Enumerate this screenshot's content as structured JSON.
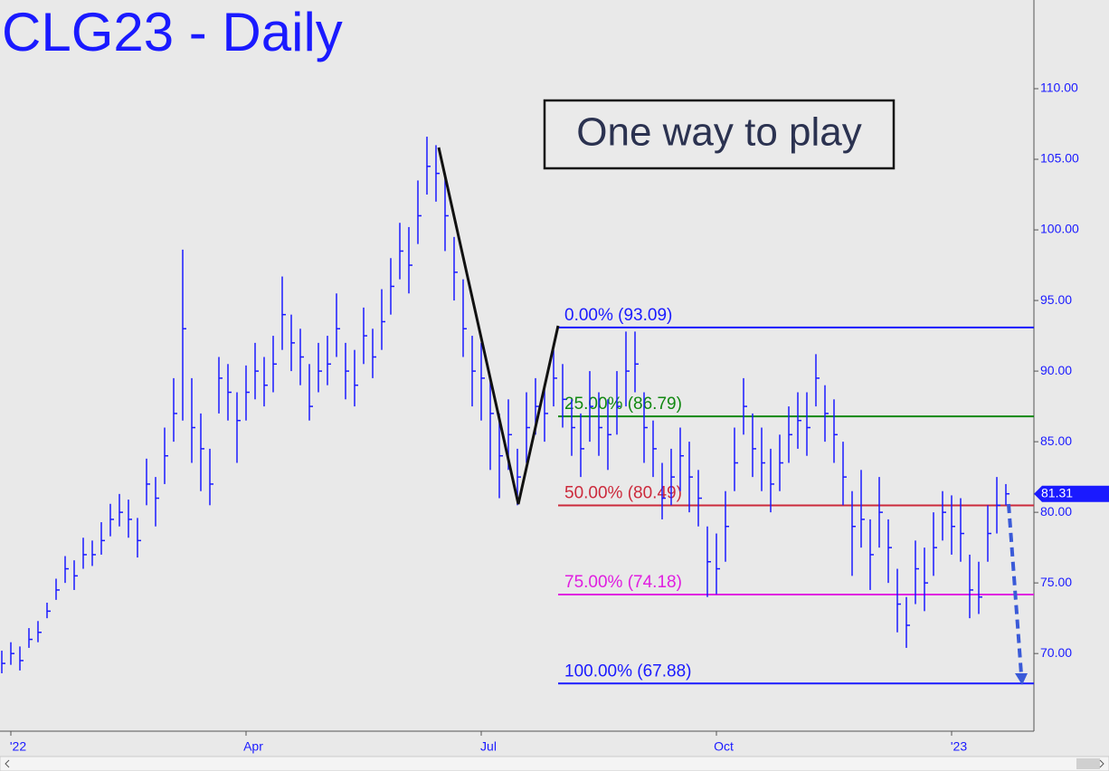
{
  "chart_data": {
    "type": "ohlc",
    "title": "CLG23 - Daily",
    "annotation": "One way  to play",
    "categories": [
      null,
      "'22",
      null,
      null,
      null,
      null,
      null,
      null,
      null,
      null,
      null,
      null,
      null,
      null,
      null,
      null,
      null,
      null,
      null,
      null,
      null,
      null,
      null,
      null,
      null,
      null,
      null,
      "Apr",
      null,
      null,
      null,
      null,
      null,
      null,
      null,
      null,
      null,
      null,
      null,
      null,
      null,
      null,
      null,
      null,
      null,
      null,
      null,
      null,
      null,
      null,
      null,
      null,
      null,
      "Jul",
      null,
      null,
      null,
      null,
      null,
      null,
      null,
      null,
      null,
      null,
      null,
      null,
      null,
      null,
      null,
      null,
      null,
      null,
      null,
      null,
      null,
      null,
      null,
      null,
      null,
      "Oct",
      null,
      null,
      null,
      null,
      null,
      null,
      null,
      null,
      null,
      null,
      null,
      null,
      null,
      null,
      null,
      null,
      null,
      null,
      null,
      null,
      null,
      null,
      null,
      null,
      null,
      "'23",
      null,
      null,
      null,
      null,
      null,
      null
    ],
    "high": [
      70.2,
      70.8,
      70.5,
      71.8,
      72.3,
      73.6,
      75.3,
      76.9,
      76.6,
      78.2,
      78.0,
      79.3,
      80.6,
      81.3,
      80.9,
      79.6,
      83.8,
      82.5,
      86.0,
      89.5,
      98.6,
      89.5,
      87.0,
      84.5,
      91.0,
      90.5,
      88.5,
      90.4,
      92.0,
      91.0,
      92.5,
      96.7,
      94.0,
      93.0,
      90.5,
      92.0,
      92.5,
      95.5,
      92.0,
      91.5,
      94.5,
      93.0,
      95.8,
      98.0,
      100.5,
      100.2,
      103.5,
      106.6,
      106.0,
      104.0,
      99.5,
      96.5,
      92.5,
      92.0,
      89.5,
      87.0,
      88.0,
      84.5,
      88.5,
      89.5,
      89.0,
      91.5,
      90.5,
      88.0,
      87.0,
      90.0,
      88.5,
      88.0,
      90.0,
      92.8,
      92.8,
      88.5,
      86.5,
      83.5,
      84.5,
      86.0,
      85.0,
      83.0,
      79.0,
      78.5,
      81.5,
      86.0,
      89.5,
      87.0,
      86.0,
      84.5,
      85.5,
      87.5,
      88.5,
      88.5,
      91.2,
      89.0,
      88.0,
      85.0,
      81.5,
      83.0,
      79.5,
      82.5,
      79.5,
      76.0,
      74.0,
      78.0,
      77.5,
      80.0,
      81.5,
      81.2,
      81.0,
      77.0,
      76.5,
      80.5,
      82.5,
      82.0
    ],
    "low": [
      68.6,
      69.2,
      68.8,
      70.4,
      70.8,
      72.5,
      73.8,
      75.0,
      74.5,
      76.0,
      76.2,
      77.0,
      78.3,
      79.0,
      78.2,
      76.8,
      80.5,
      79.0,
      82.0,
      85.0,
      86.5,
      83.5,
      81.5,
      80.5,
      87.0,
      86.5,
      83.5,
      86.5,
      88.0,
      87.5,
      88.5,
      91.5,
      90.0,
      89.0,
      86.5,
      88.5,
      89.0,
      91.0,
      88.0,
      87.5,
      90.5,
      89.5,
      91.5,
      94.0,
      96.5,
      95.5,
      99.0,
      102.5,
      102.0,
      98.5,
      95.0,
      91.0,
      87.5,
      86.5,
      83.0,
      81.0,
      83.0,
      80.5,
      83.5,
      85.5,
      85.0,
      87.5,
      86.0,
      84.0,
      82.5,
      85.0,
      84.0,
      83.0,
      85.5,
      87.5,
      88.5,
      83.5,
      82.5,
      79.5,
      80.5,
      81.5,
      80.0,
      79.0,
      74.0,
      74.2,
      76.5,
      81.5,
      85.5,
      82.5,
      81.5,
      80.0,
      81.5,
      83.5,
      84.5,
      84.0,
      87.5,
      85.0,
      83.5,
      80.5,
      75.5,
      77.5,
      74.5,
      77.5,
      75.0,
      71.5,
      70.4,
      73.5,
      73.0,
      75.5,
      78.0,
      77.0,
      76.5,
      72.5,
      72.8,
      76.5,
      78.5,
      80.5
    ],
    "close": [
      69.3,
      70.0,
      69.5,
      71.0,
      71.5,
      73.0,
      74.5,
      76.0,
      75.5,
      77.0,
      77.0,
      78.0,
      79.5,
      80.0,
      79.5,
      78.0,
      82.0,
      81.0,
      84.0,
      87.0,
      93.0,
      86.0,
      84.5,
      82.0,
      89.5,
      88.5,
      86.5,
      88.5,
      90.0,
      89.0,
      90.5,
      94.0,
      92.0,
      91.0,
      87.5,
      90.0,
      90.5,
      93.0,
      90.0,
      89.0,
      92.5,
      91.0,
      93.5,
      96.0,
      98.5,
      97.5,
      101.0,
      104.5,
      104.0,
      101.0,
      97.0,
      93.0,
      90.0,
      89.5,
      87.0,
      84.0,
      85.5,
      82.5,
      86.0,
      87.5,
      87.0,
      89.5,
      88.0,
      86.0,
      84.5,
      87.5,
      86.0,
      85.5,
      87.5,
      90.0,
      90.5,
      86.0,
      84.5,
      81.0,
      82.5,
      84.0,
      82.5,
      81.0,
      76.5,
      76.0,
      79.0,
      83.5,
      87.5,
      84.5,
      83.5,
      82.0,
      83.5,
      85.5,
      86.5,
      86.0,
      89.5,
      87.0,
      85.5,
      82.5,
      79.0,
      79.5,
      77.0,
      80.0,
      77.5,
      73.5,
      72.0,
      76.0,
      75.0,
      77.5,
      80.0,
      79.0,
      78.5,
      74.5,
      74.0,
      78.5,
      80.5,
      81.31
    ],
    "color": "#1a1aff",
    "ylim": [
      64.5,
      116.28
    ],
    "yticks": [
      {
        "value": 70,
        "label": "70.00"
      },
      {
        "value": 75,
        "label": "75.00"
      },
      {
        "value": 80,
        "label": "80.00"
      },
      {
        "value": 85,
        "label": "85.00"
      },
      {
        "value": 90,
        "label": "90.00"
      },
      {
        "value": 95,
        "label": "95.00"
      },
      {
        "value": 100,
        "label": "100.00"
      },
      {
        "value": 105,
        "label": "105.00"
      },
      {
        "value": 110,
        "label": "110.00"
      }
    ],
    "last_price": 81.31,
    "levels": [
      {
        "label": "0.00% (93.09)",
        "value": 93.09,
        "color": "#1a1aff"
      },
      {
        "label": "25.00% (86.79)",
        "value": 86.79,
        "color": "#118811"
      },
      {
        "label": "50.00% (80.49)",
        "value": 80.49,
        "color": "#cc2a3c"
      },
      {
        "label": "75.00% (74.18)",
        "value": 74.18,
        "color": "#e01ee0"
      },
      {
        "label": "100.00% (67.88)",
        "value": 67.88,
        "color": "#1a1aff"
      }
    ]
  }
}
